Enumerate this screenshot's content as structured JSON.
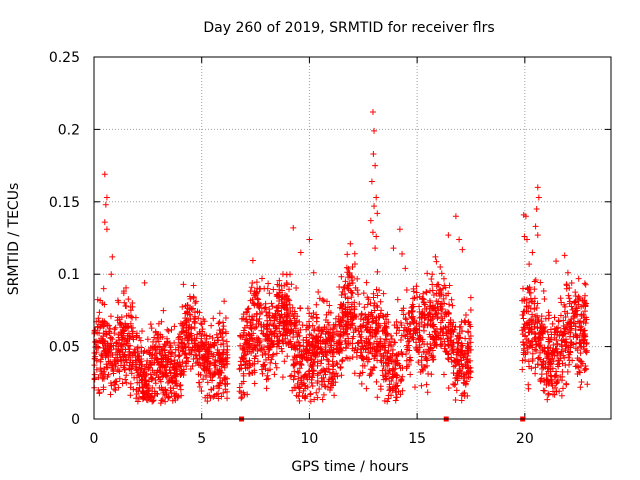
{
  "chart_data": {
    "type": "scatter",
    "title": "Day 260 of 2019, SRMTID for receiver flrs",
    "xlabel": "GPS time / hours",
    "ylabel": "SRMTID / TECUs",
    "xlim": [
      0,
      24
    ],
    "ylim": [
      0,
      0.25
    ],
    "xticks": [
      0,
      5,
      10,
      15,
      20
    ],
    "yticks": [
      0,
      0.05,
      0.1,
      0.15,
      0.2,
      0.25
    ],
    "xtick_labels": [
      "0",
      "5",
      "10",
      "15",
      "20"
    ],
    "ytick_labels": [
      "0",
      "0.05",
      "0.1",
      "0.15",
      "0.2",
      "0.25"
    ],
    "grid": true,
    "marker": "+",
    "color": "#ff0000",
    "segments": [
      {
        "start": 0.0,
        "end": 6.2,
        "base": 0.042,
        "spread": 0.014
      },
      {
        "start": 6.75,
        "end": 17.5,
        "base": 0.055,
        "spread": 0.016
      },
      {
        "start": 19.85,
        "end": 22.9,
        "base": 0.06,
        "spread": 0.016
      }
    ],
    "highlights": [
      {
        "x": 0.5,
        "y": 0.169
      },
      {
        "x": 0.6,
        "y": 0.153
      },
      {
        "x": 0.55,
        "y": 0.148
      },
      {
        "x": 0.5,
        "y": 0.136
      },
      {
        "x": 0.6,
        "y": 0.131
      },
      {
        "x": 0.85,
        "y": 0.112
      },
      {
        "x": 0.8,
        "y": 0.1
      },
      {
        "x": 0.45,
        "y": 0.09
      },
      {
        "x": 2.35,
        "y": 0.094
      },
      {
        "x": 4.15,
        "y": 0.093
      },
      {
        "x": 4.25,
        "y": 0.078
      },
      {
        "x": 9.25,
        "y": 0.132
      },
      {
        "x": 9.6,
        "y": 0.115
      },
      {
        "x": 9.1,
        "y": 0.1
      },
      {
        "x": 10.0,
        "y": 0.124
      },
      {
        "x": 10.2,
        "y": 0.101
      },
      {
        "x": 7.9,
        "y": 0.09
      },
      {
        "x": 7.8,
        "y": 0.097
      },
      {
        "x": 11.9,
        "y": 0.121
      },
      {
        "x": 12.0,
        "y": 0.105
      },
      {
        "x": 12.95,
        "y": 0.212
      },
      {
        "x": 13.0,
        "y": 0.199
      },
      {
        "x": 12.97,
        "y": 0.183
      },
      {
        "x": 13.05,
        "y": 0.175
      },
      {
        "x": 12.9,
        "y": 0.164
      },
      {
        "x": 13.1,
        "y": 0.153
      },
      {
        "x": 13.0,
        "y": 0.147
      },
      {
        "x": 13.15,
        "y": 0.142
      },
      {
        "x": 12.85,
        "y": 0.137
      },
      {
        "x": 12.95,
        "y": 0.129
      },
      {
        "x": 13.1,
        "y": 0.126
      },
      {
        "x": 13.05,
        "y": 0.118
      },
      {
        "x": 14.2,
        "y": 0.131
      },
      {
        "x": 14.3,
        "y": 0.114
      },
      {
        "x": 13.9,
        "y": 0.118
      },
      {
        "x": 14.45,
        "y": 0.104
      },
      {
        "x": 15.85,
        "y": 0.112
      },
      {
        "x": 15.7,
        "y": 0.1
      },
      {
        "x": 16.45,
        "y": 0.127
      },
      {
        "x": 16.8,
        "y": 0.14
      },
      {
        "x": 16.95,
        "y": 0.124
      },
      {
        "x": 17.1,
        "y": 0.117
      },
      {
        "x": 16.2,
        "y": 0.09
      },
      {
        "x": 19.95,
        "y": 0.141
      },
      {
        "x": 20.05,
        "y": 0.14
      },
      {
        "x": 19.98,
        "y": 0.126
      },
      {
        "x": 20.1,
        "y": 0.124
      },
      {
        "x": 20.6,
        "y": 0.16
      },
      {
        "x": 20.65,
        "y": 0.153
      },
      {
        "x": 20.55,
        "y": 0.145
      },
      {
        "x": 20.5,
        "y": 0.133
      },
      {
        "x": 20.6,
        "y": 0.127
      },
      {
        "x": 20.35,
        "y": 0.115
      },
      {
        "x": 20.2,
        "y": 0.107
      },
      {
        "x": 21.45,
        "y": 0.109
      },
      {
        "x": 21.85,
        "y": 0.113
      },
      {
        "x": 22.0,
        "y": 0.101
      },
      {
        "x": 22.5,
        "y": 0.079
      },
      {
        "x": 22.9,
        "y": 0.024
      },
      {
        "x": 2.5,
        "y": 0.013
      },
      {
        "x": 2.7,
        "y": 0.012
      },
      {
        "x": 3.1,
        "y": 0.011
      },
      {
        "x": 3.3,
        "y": 0.012
      },
      {
        "x": 5.6,
        "y": 0.016
      },
      {
        "x": 6.0,
        "y": 0.018
      },
      {
        "x": 0.2,
        "y": 0.02
      },
      {
        "x": 14.9,
        "y": 0.022
      },
      {
        "x": 15.2,
        "y": 0.023
      },
      {
        "x": 17.2,
        "y": 0.018
      },
      {
        "x": 1.5,
        "y": 0.025
      }
    ],
    "gap_markers": [
      {
        "x": 6.85,
        "y": 0.0
      },
      {
        "x": 16.35,
        "y": 0.0
      },
      {
        "x": 19.9,
        "y": 0.0
      }
    ]
  }
}
